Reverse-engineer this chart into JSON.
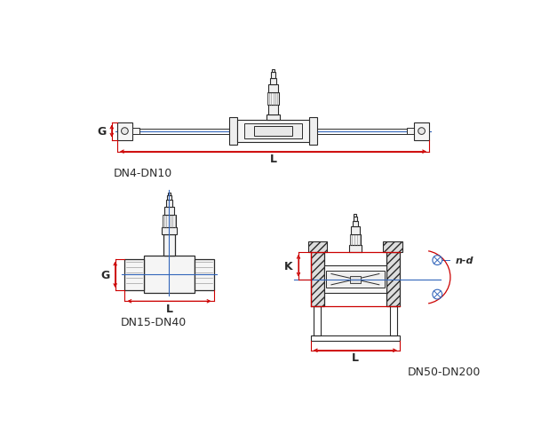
{
  "bg_color": "#ffffff",
  "line_color": "#2a2a2a",
  "red_color": "#cc0000",
  "blue_color": "#3366bb",
  "gray_color": "#888888",
  "title1": "DN4-DN10",
  "title2": "DN15-DN40",
  "title3": "DN50-DN200",
  "label_G": "G",
  "label_L": "L",
  "label_K": "K",
  "label_nd": "n-d",
  "fig_width": 6.0,
  "fig_height": 4.81
}
